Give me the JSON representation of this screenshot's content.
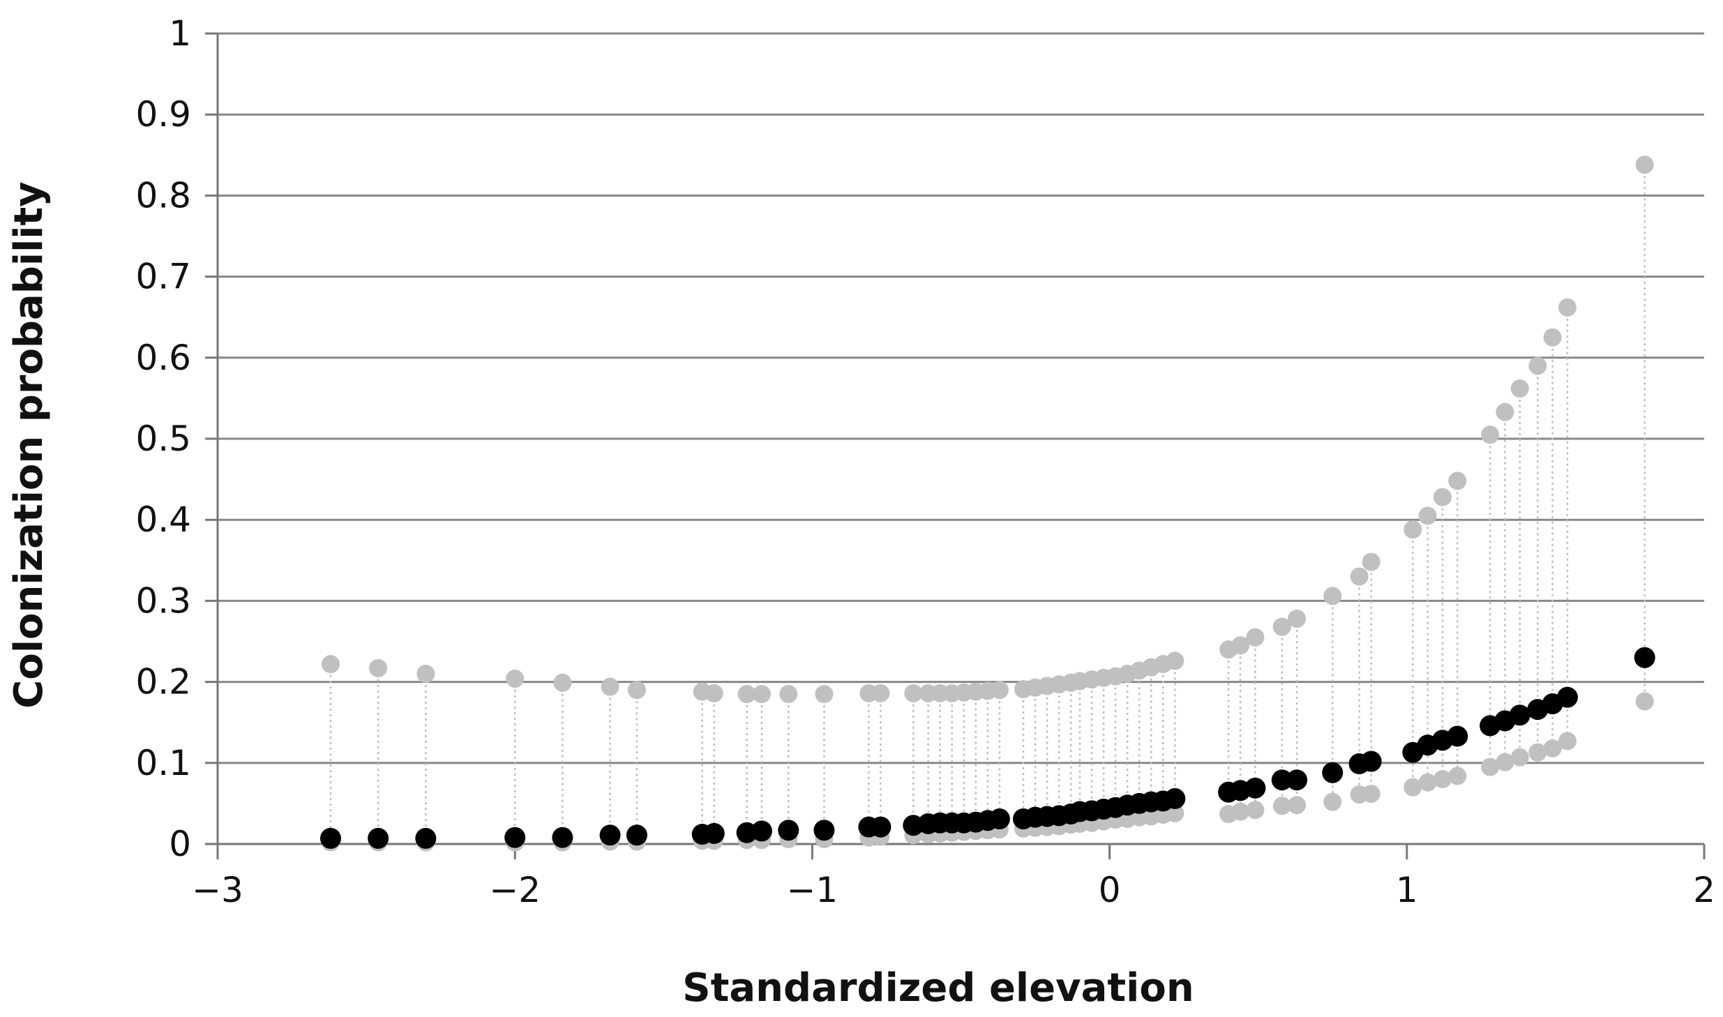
{
  "colors": {
    "upper_bound": "#c0c0c0",
    "lower_bound": "#c0c0c0",
    "estimate": "#000000",
    "gridline": "#888888",
    "axis": "#777777",
    "connector": "#bdbdbd"
  },
  "chart_data": {
    "type": "scatter",
    "title": "",
    "xlabel": "Standardized elevation",
    "ylabel": "Colonization probability",
    "xlim": [
      -3,
      2
    ],
    "ylim": [
      0,
      1
    ],
    "x_ticks": [
      -3,
      -2,
      -1,
      0,
      1,
      2
    ],
    "x_tick_labels": [
      "−3",
      "−2",
      "−1",
      "0",
      "1",
      "2"
    ],
    "y_ticks": [
      0,
      0.1,
      0.2,
      0.3,
      0.4,
      0.5,
      0.6,
      0.7,
      0.8,
      0.9,
      1
    ],
    "y_tick_labels": [
      "0",
      "0.1",
      "0.2",
      "0.3",
      "0.4",
      "0.5",
      "0.6",
      "0.7",
      "0.8",
      "0.9",
      "1"
    ],
    "grid": "horizontal",
    "legend": "none",
    "x": [
      -2.62,
      -2.46,
      -2.3,
      -2.0,
      -1.84,
      -1.68,
      -1.59,
      -1.37,
      -1.33,
      -1.22,
      -1.17,
      -1.08,
      -0.96,
      -0.81,
      -0.77,
      -0.66,
      -0.61,
      -0.57,
      -0.53,
      -0.49,
      -0.45,
      -0.41,
      -0.37,
      -0.29,
      -0.25,
      -0.21,
      -0.17,
      -0.13,
      -0.1,
      -0.06,
      -0.02,
      0.02,
      0.06,
      0.1,
      0.14,
      0.18,
      0.22,
      0.4,
      0.44,
      0.49,
      0.58,
      0.63,
      0.75,
      0.84,
      0.88,
      1.02,
      1.07,
      1.12,
      1.17,
      1.28,
      1.33,
      1.38,
      1.44,
      1.49,
      1.54,
      1.8
    ],
    "series": [
      {
        "role": "upper",
        "values": [
          0.222,
          0.217,
          0.21,
          0.204,
          0.199,
          0.194,
          0.19,
          0.188,
          0.186,
          0.185,
          0.185,
          0.185,
          0.185,
          0.186,
          0.186,
          0.186,
          0.186,
          0.186,
          0.186,
          0.187,
          0.188,
          0.189,
          0.19,
          0.191,
          0.193,
          0.195,
          0.197,
          0.199,
          0.201,
          0.203,
          0.205,
          0.207,
          0.21,
          0.214,
          0.218,
          0.222,
          0.226,
          0.24,
          0.245,
          0.255,
          0.268,
          0.278,
          0.306,
          0.33,
          0.348,
          0.388,
          0.405,
          0.428,
          0.448,
          0.505,
          0.533,
          0.562,
          0.59,
          0.625,
          0.662,
          0.838
        ]
      },
      {
        "role": "estimate",
        "values": [
          0.007,
          0.007,
          0.007,
          0.008,
          0.008,
          0.011,
          0.011,
          0.012,
          0.013,
          0.014,
          0.016,
          0.017,
          0.017,
          0.021,
          0.021,
          0.023,
          0.025,
          0.026,
          0.026,
          0.026,
          0.027,
          0.029,
          0.031,
          0.031,
          0.033,
          0.034,
          0.035,
          0.037,
          0.04,
          0.041,
          0.043,
          0.045,
          0.048,
          0.05,
          0.052,
          0.053,
          0.056,
          0.064,
          0.066,
          0.069,
          0.079,
          0.079,
          0.088,
          0.099,
          0.102,
          0.113,
          0.122,
          0.128,
          0.133,
          0.146,
          0.152,
          0.159,
          0.166,
          0.173,
          0.181,
          0.23
        ]
      },
      {
        "role": "lower",
        "values": [
          0.002,
          0.002,
          0.002,
          0.002,
          0.002,
          0.003,
          0.003,
          0.004,
          0.004,
          0.005,
          0.005,
          0.006,
          0.006,
          0.008,
          0.009,
          0.011,
          0.012,
          0.013,
          0.014,
          0.015,
          0.016,
          0.017,
          0.018,
          0.019,
          0.02,
          0.021,
          0.022,
          0.024,
          0.025,
          0.026,
          0.028,
          0.03,
          0.031,
          0.033,
          0.034,
          0.036,
          0.038,
          0.037,
          0.04,
          0.042,
          0.047,
          0.048,
          0.052,
          0.061,
          0.062,
          0.07,
          0.076,
          0.08,
          0.084,
          0.095,
          0.101,
          0.107,
          0.113,
          0.118,
          0.127,
          0.176
        ]
      }
    ]
  }
}
